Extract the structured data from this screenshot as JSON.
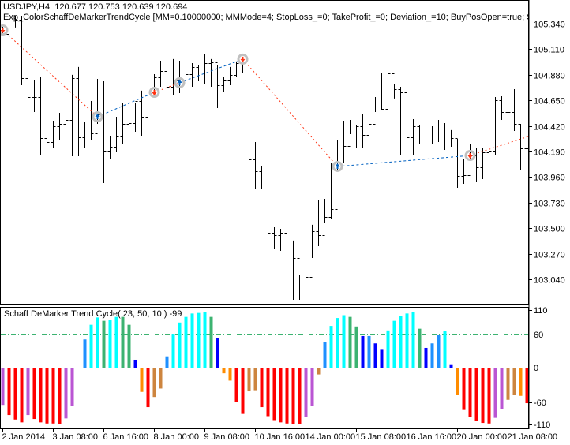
{
  "header": {
    "symbol_line": "USDJPY,H4  120.677 120.753 120.639 120.694",
    "expert_line": "Exp_ColorSchaffDeMarkerTrendCycle [MM=0.10000000; MMMode=4; StopLoss_=0; TakeProfit_=0; Deviation_=10; BuyPosOpen=true; SellPosOpen=true; B"
  },
  "indicator": {
    "label": "Schaff DeMarker Trend Cycle( 23, 50, 10 ) -99",
    "levels": {
      "upper": 60,
      "lower": -60
    },
    "axis_labels": [
      "110",
      "60",
      "0",
      "-60",
      "-110"
    ]
  },
  "price_axis": [
    "105.340",
    "105.110",
    "104.880",
    "104.650",
    "104.420",
    "104.190",
    "103.960",
    "103.730",
    "103.500",
    "103.270",
    "103.040"
  ],
  "time_axis": [
    "2 Jan 2014",
    "3 Jan 08:00",
    "6 Jan 16:00",
    "8 Jan 00:00",
    "9 Jan 08:00",
    "10 Jan 16:00",
    "14 Jan 00:00",
    "15 Jan 08:00",
    "16 Jan 16:00",
    "20 Jan 00:00",
    "21 Jan 08:00"
  ],
  "colors": {
    "bar": "#000000",
    "buy": "#0060C0",
    "sell": "#FF3010",
    "level_up": "#3CB371",
    "level_down": "#FF00FF",
    "hist": {
      "red": "#FF0000",
      "purple": "#BA55D3",
      "peru": "#CD853F",
      "orange": "#FF8C00",
      "dodger": "#1E90FF",
      "cyan": "#00FFFF",
      "green": "#3CB371",
      "blue": "#0000FF"
    }
  },
  "chart_data": [
    {
      "type": "ohlc",
      "symbol": "USDJPY",
      "timeframe": "H4",
      "ylim": [
        102.83,
        105.45
      ],
      "high": [
        105.319,
        105.326,
        105.411,
        105.411,
        105.042,
        104.829,
        104.864,
        104.396,
        104.467,
        104.538,
        104.595,
        104.879,
        104.95,
        104.453,
        104.644,
        104.843,
        104.822,
        104.332,
        104.502,
        104.63,
        104.644,
        104.63,
        104.737,
        104.758,
        104.886,
        105.006,
        105.127,
        105.021,
        105.006,
        105.056,
        104.985,
        104.964,
        105.07,
        105.021,
        104.971,
        104.857,
        104.95,
        105.0,
        105.042,
        105.34,
        104.275,
        104.062,
        103.778,
        103.508,
        103.494,
        103.579,
        103.388,
        103.082,
        103.48,
        103.53,
        103.757,
        103.764,
        104.083,
        104.289,
        104.467,
        104.474,
        104.431,
        104.524,
        104.701,
        104.68,
        104.893,
        104.928,
        104.793,
        104.772,
        104.488,
        104.481,
        104.431,
        104.403,
        104.417,
        104.474,
        104.445,
        104.382,
        104.303,
        104.119,
        104.261,
        104.218,
        104.218,
        104.225,
        104.68,
        104.687,
        104.751,
        104.751,
        104.438,
        104.367
      ],
      "low": [
        105.248,
        105.248,
        105.305,
        104.786,
        104.644,
        104.545,
        104.154,
        104.076,
        104.218,
        104.296,
        104.332,
        104.147,
        104.147,
        104.225,
        104.296,
        104.438,
        103.906,
        104.119,
        104.183,
        104.254,
        104.367,
        104.367,
        104.332,
        104.502,
        104.68,
        104.772,
        104.666,
        104.701,
        104.715,
        104.715,
        104.772,
        104.822,
        104.793,
        104.772,
        104.58,
        104.722,
        104.786,
        104.864,
        104.893,
        104.119,
        103.849,
        103.849,
        103.352,
        103.316,
        103.295,
        102.983,
        102.855,
        102.855,
        103.018,
        103.231,
        103.338,
        103.544,
        103.586,
        104.012,
        104.083,
        104.346,
        104.225,
        104.218,
        104.367,
        104.545,
        104.559,
        104.666,
        104.666,
        104.154,
        104.154,
        104.154,
        104.261,
        104.19,
        104.261,
        104.275,
        104.204,
        104.232,
        103.863,
        103.899,
        104.112,
        103.913,
        103.941,
        104.14,
        104.154,
        104.474,
        104.367,
        104.374,
        104.019,
        104.168
      ],
      "close": [
        105.248,
        105.305,
        105.376,
        104.85,
        104.68,
        104.68,
        104.311,
        104.275,
        104.417,
        104.438,
        104.474,
        104.85,
        104.318,
        104.36,
        104.353,
        104.524,
        104.19,
        104.232,
        104.325,
        104.438,
        104.445,
        104.644,
        104.502,
        104.701,
        104.857,
        104.914,
        104.772,
        104.829,
        104.971,
        104.886,
        104.95,
        104.9,
        104.985,
        104.992,
        104.786,
        104.829,
        104.879,
        104.985,
        104.971,
        104.119,
        104.012,
        103.991,
        103.459,
        103.437,
        103.459,
        103.316,
        103.231,
        102.947,
        103.061,
        103.473,
        103.437,
        103.6,
        103.671,
        104.062,
        104.24,
        104.431,
        104.417,
        104.339,
        104.438,
        104.63,
        104.573,
        104.893,
        104.751,
        104.722,
        104.318,
        104.417,
        104.332,
        104.296,
        104.36,
        104.36,
        104.296,
        104.311,
        103.97,
        103.977,
        104.154,
        104.048,
        104.183,
        104.19,
        104.651,
        104.545,
        104.545,
        104.438,
        104.218,
        104.218
      ],
      "trades": [
        {
          "bar": 0,
          "price": 105.283,
          "type": "sell"
        },
        {
          "bar": 15,
          "price": 104.502,
          "type": "buy"
        },
        {
          "bar": 24,
          "price": 104.722,
          "type": "sell"
        },
        {
          "bar": 28,
          "price": 104.808,
          "type": "buy"
        },
        {
          "bar": 38,
          "price": 105.021,
          "type": "sell"
        },
        {
          "bar": 53,
          "price": 104.055,
          "type": "buy"
        },
        {
          "bar": 74,
          "price": 104.154,
          "type": "sell"
        }
      ],
      "trade_line_end_price": 104.324
    },
    {
      "type": "bar",
      "title": "Schaff DeMarker Trend Cycle( 23, 50, 10 ) -99",
      "ylim": [
        -110,
        110
      ],
      "values": [
        -66,
        -84,
        -92,
        -97,
        -84,
        -91,
        -97,
        -99,
        -99,
        -100,
        -90,
        -68,
        0,
        50,
        76,
        89,
        83,
        85,
        90,
        90,
        76,
        14,
        -43,
        -70,
        -52,
        -37,
        20,
        60,
        80,
        90,
        96,
        97,
        99,
        90,
        52,
        -10,
        -23,
        -61,
        -82,
        -42,
        -40,
        -70,
        -86,
        -93,
        -97,
        -99,
        -100,
        -100,
        -87,
        -68,
        -12,
        45,
        74,
        88,
        93,
        90,
        73,
        56,
        56,
        43,
        33,
        66,
        83,
        92,
        96,
        99,
        69,
        35,
        43,
        58,
        65,
        6,
        -48,
        -75,
        -88,
        -95,
        -98,
        -99,
        -89,
        -73,
        -57,
        -48,
        -50,
        -63
      ],
      "colors": [
        "purple",
        "red",
        "red",
        "red",
        "purple",
        "red",
        "red",
        "red",
        "red",
        "red",
        "purple",
        "purple",
        "none",
        "dodger",
        "cyan",
        "cyan",
        "green",
        "cyan",
        "cyan",
        "green",
        "green",
        "blue",
        "orange",
        "red",
        "peru",
        "peru",
        "dodger",
        "cyan",
        "cyan",
        "cyan",
        "cyan",
        "cyan",
        "cyan",
        "green",
        "blue",
        "orange",
        "orange",
        "red",
        "red",
        "peru",
        "peru",
        "red",
        "red",
        "red",
        "red",
        "red",
        "red",
        "red",
        "purple",
        "purple",
        "peru",
        "dodger",
        "cyan",
        "cyan",
        "cyan",
        "green",
        "green",
        "blue",
        "dodger",
        "blue",
        "blue",
        "cyan",
        "cyan",
        "cyan",
        "cyan",
        "cyan",
        "green",
        "blue",
        "dodger",
        "dodger",
        "cyan",
        "blue",
        "orange",
        "red",
        "red",
        "red",
        "red",
        "red",
        "purple",
        "purple",
        "peru",
        "peru",
        "orange",
        "red"
      ]
    }
  ]
}
